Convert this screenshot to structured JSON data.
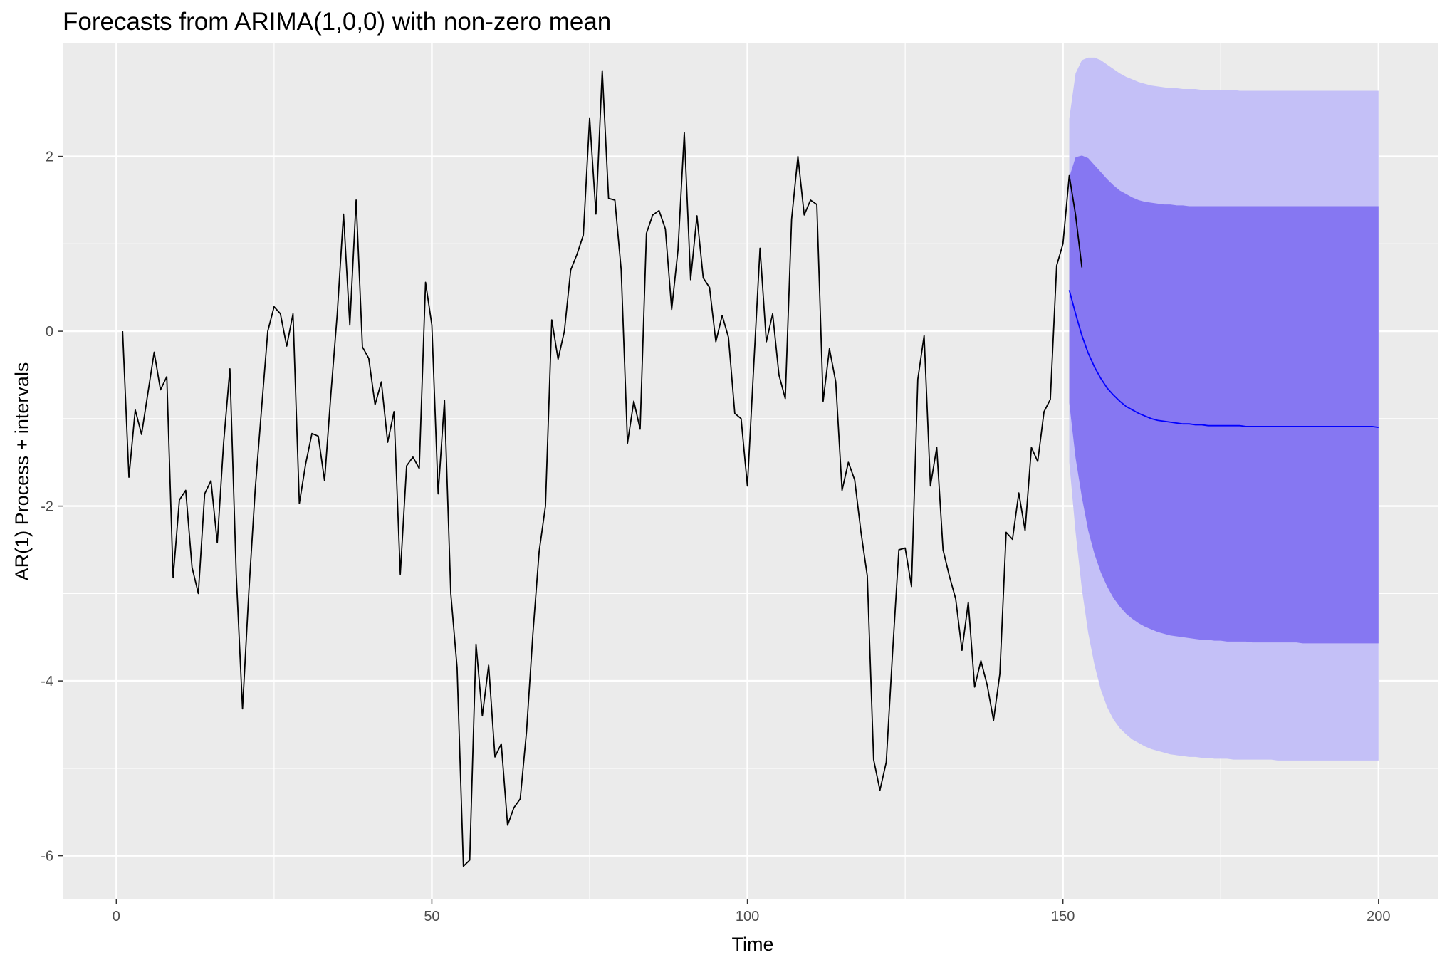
{
  "chart_data": {
    "type": "line",
    "title": "Forecasts from ARIMA(1,0,0) with non-zero mean",
    "xlabel": "Time",
    "ylabel": "AR(1) Process + intervals",
    "xlim": [
      -8.5,
      209.5
    ],
    "ylim": [
      -6.5,
      3.3
    ],
    "x_ticks": [
      0,
      50,
      100,
      150,
      200
    ],
    "y_ticks": [
      -6,
      -4,
      -2,
      0,
      2
    ],
    "grid": true,
    "colors": {
      "panel": "#ebebeb",
      "grid": "#ffffff",
      "series": "#000000",
      "forecast": "#0000ff",
      "band80": "#8677f2",
      "band95": "#c4c0f7"
    },
    "series": [
      {
        "x_start": 1,
        "values": [
          0.0,
          -1.67,
          -0.9,
          -1.18,
          -0.71,
          -0.24,
          -0.67,
          -0.52,
          -2.82,
          -1.93,
          -1.82,
          -2.7,
          -3.0,
          -1.86,
          -1.71,
          -2.42,
          -1.28,
          -0.43,
          -2.78,
          -4.32,
          -2.98,
          -1.82,
          -0.9,
          0.0,
          0.28,
          0.2,
          -0.17,
          0.2,
          -1.97,
          -1.52,
          -1.17,
          -1.2,
          -1.71,
          -0.72,
          0.19,
          1.34,
          0.07,
          1.5,
          -0.18,
          -0.31,
          -0.84,
          -0.58,
          -1.27,
          -0.92,
          -2.78,
          -1.54,
          -1.44,
          -1.57,
          0.56,
          0.07,
          -1.86,
          -0.79,
          -3.0,
          -3.85,
          -6.12,
          -6.05,
          -3.58,
          -4.4,
          -3.82,
          -4.87,
          -4.72,
          -5.65,
          -5.45,
          -5.35,
          -4.58,
          -3.47,
          -2.52,
          -2.0,
          0.13,
          -0.32,
          0.0,
          0.7,
          0.88,
          1.1,
          2.44,
          1.34,
          2.98,
          1.52,
          1.5,
          0.7,
          -1.28,
          -0.8,
          -1.12,
          1.12,
          1.33,
          1.38,
          1.17,
          0.25,
          0.93,
          2.27,
          0.59,
          1.32,
          0.61,
          0.5,
          -0.12,
          0.18,
          -0.07,
          -0.94,
          -1.0,
          -1.77,
          -0.4,
          0.95,
          -0.12,
          0.2,
          -0.5,
          -0.77,
          1.28,
          2.0,
          1.33,
          1.5,
          1.45,
          -0.8,
          -0.2,
          -0.58,
          -1.82,
          -1.5,
          -1.7,
          -2.3,
          -2.8,
          -4.9,
          -5.25,
          -4.93,
          -3.68,
          -2.5,
          -2.48,
          -2.92,
          -0.55,
          -0.05,
          -1.77,
          -1.33,
          -2.5,
          -2.8,
          -3.06,
          -3.65,
          -3.1,
          -4.07,
          -3.77,
          -4.05,
          -4.45,
          -3.92,
          -2.3,
          -2.38,
          -1.85,
          -2.28,
          -1.33,
          -1.49,
          -0.92,
          -0.78,
          0.75,
          1.0,
          1.78,
          1.33,
          0.73
        ]
      }
    ],
    "forecast": {
      "x_start": 151,
      "mean": [
        0.47,
        0.2,
        -0.05,
        -0.25,
        -0.41,
        -0.54,
        -0.65,
        -0.73,
        -0.8,
        -0.86,
        -0.9,
        -0.94,
        -0.97,
        -1.0,
        -1.02,
        -1.03,
        -1.04,
        -1.05,
        -1.06,
        -1.06,
        -1.07,
        -1.07,
        -1.08,
        -1.08,
        -1.08,
        -1.08,
        -1.08,
        -1.08,
        -1.09,
        -1.09,
        -1.09,
        -1.09,
        -1.09,
        -1.09,
        -1.09,
        -1.09,
        -1.09,
        -1.09,
        -1.09,
        -1.09,
        -1.09,
        -1.09,
        -1.09,
        -1.09,
        -1.09,
        -1.09,
        -1.09,
        -1.09,
        -1.09,
        -1.1
      ],
      "lo80": [
        -0.82,
        -1.45,
        -1.9,
        -2.28,
        -2.55,
        -2.76,
        -2.92,
        -3.05,
        -3.15,
        -3.23,
        -3.29,
        -3.34,
        -3.38,
        -3.41,
        -3.44,
        -3.46,
        -3.48,
        -3.49,
        -3.5,
        -3.51,
        -3.52,
        -3.53,
        -3.53,
        -3.54,
        -3.54,
        -3.55,
        -3.55,
        -3.55,
        -3.55,
        -3.56,
        -3.56,
        -3.56,
        -3.56,
        -3.56,
        -3.56,
        -3.56,
        -3.56,
        -3.57,
        -3.57,
        -3.57,
        -3.57,
        -3.57,
        -3.57,
        -3.57,
        -3.57,
        -3.57,
        -3.57,
        -3.57,
        -3.57,
        -3.57
      ],
      "hi80": [
        1.76,
        1.99,
        2.01,
        1.98,
        1.9,
        1.82,
        1.74,
        1.67,
        1.61,
        1.57,
        1.53,
        1.5,
        1.48,
        1.47,
        1.46,
        1.45,
        1.45,
        1.44,
        1.44,
        1.43,
        1.43,
        1.43,
        1.43,
        1.43,
        1.43,
        1.43,
        1.43,
        1.43,
        1.43,
        1.43,
        1.43,
        1.43,
        1.43,
        1.43,
        1.43,
        1.43,
        1.43,
        1.43,
        1.43,
        1.43,
        1.43,
        1.43,
        1.43,
        1.43,
        1.43,
        1.43,
        1.43,
        1.43,
        1.43,
        1.43
      ],
      "lo95": [
        -1.5,
        -2.3,
        -2.95,
        -3.45,
        -3.82,
        -4.1,
        -4.3,
        -4.44,
        -4.54,
        -4.61,
        -4.67,
        -4.71,
        -4.75,
        -4.78,
        -4.8,
        -4.82,
        -4.84,
        -4.85,
        -4.86,
        -4.87,
        -4.87,
        -4.88,
        -4.88,
        -4.89,
        -4.89,
        -4.89,
        -4.9,
        -4.9,
        -4.9,
        -4.9,
        -4.9,
        -4.9,
        -4.9,
        -4.91,
        -4.91,
        -4.91,
        -4.91,
        -4.91,
        -4.91,
        -4.91,
        -4.91,
        -4.91,
        -4.91,
        -4.91,
        -4.91,
        -4.91,
        -4.91,
        -4.91,
        -4.91,
        -4.91
      ],
      "hi95": [
        2.43,
        2.95,
        3.1,
        3.13,
        3.13,
        3.1,
        3.05,
        3.0,
        2.95,
        2.91,
        2.88,
        2.85,
        2.83,
        2.81,
        2.8,
        2.79,
        2.78,
        2.78,
        2.77,
        2.77,
        2.77,
        2.76,
        2.76,
        2.76,
        2.76,
        2.76,
        2.76,
        2.75,
        2.75,
        2.75,
        2.75,
        2.75,
        2.75,
        2.75,
        2.75,
        2.75,
        2.75,
        2.75,
        2.75,
        2.75,
        2.75,
        2.75,
        2.75,
        2.75,
        2.75,
        2.75,
        2.75,
        2.75,
        2.75,
        2.75
      ]
    }
  }
}
